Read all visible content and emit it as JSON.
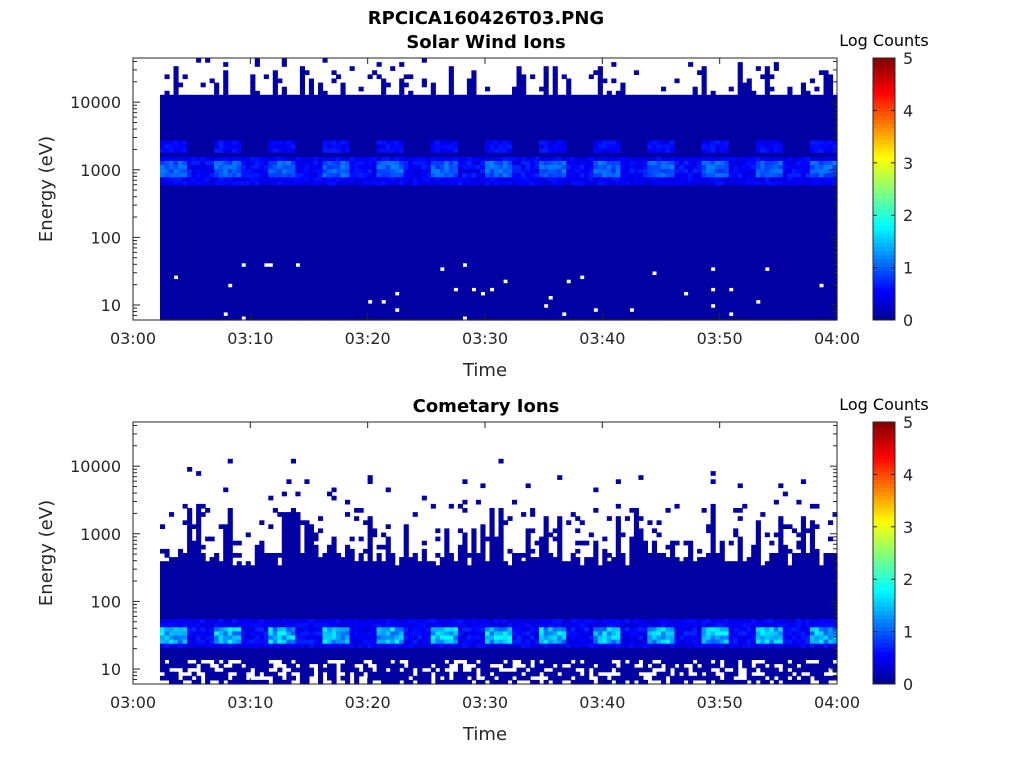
{
  "figure": {
    "title": "RPCICA160426T03.PNG"
  },
  "colors": {
    "background": "#ffffff",
    "empty": "#ffffff",
    "colormap": [
      "#00008f",
      "#0000ff",
      "#00ffff",
      "#ffff00",
      "#ff0000",
      "#800000"
    ]
  },
  "chart_data": [
    {
      "type": "heatmap",
      "title": "Solar Wind Ions",
      "xlabel": "Time",
      "ylabel": "Energy (eV)",
      "xticks": [
        "03:00",
        "03:10",
        "03:20",
        "03:30",
        "03:40",
        "03:50",
        "04:00"
      ],
      "xlim": [
        "03:00",
        "04:00"
      ],
      "yscale": "log",
      "ylim": [
        6,
        45000
      ],
      "yticks": [
        10,
        100,
        1000,
        10000
      ],
      "ytick_labels": [
        "10",
        "100",
        "1000",
        "10000"
      ],
      "data_start": "03:02.3",
      "data_end": "04:00",
      "background_log_counts": 0.1,
      "peak_energy_eV": 1000,
      "secondary_energy_eV": 2200,
      "peak_log_counts_range": [
        0.8,
        1.2
      ],
      "colorbar": {
        "label": "Log Counts",
        "min": 0,
        "max": 5,
        "ticks": [
          "0",
          "1",
          "2",
          "3",
          "4",
          "5"
        ]
      }
    },
    {
      "type": "heatmap",
      "title": "Cometary Ions",
      "xlabel": "Time",
      "ylabel": "Energy (eV)",
      "xticks": [
        "03:00",
        "03:10",
        "03:20",
        "03:30",
        "03:40",
        "03:50",
        "04:00"
      ],
      "xlim": [
        "03:00",
        "04:00"
      ],
      "yscale": "log",
      "ylim": [
        6,
        45000
      ],
      "yticks": [
        10,
        100,
        1000,
        10000
      ],
      "ytick_labels": [
        "10",
        "100",
        "1000",
        "10000"
      ],
      "data_start": "03:02.3",
      "data_end": "04:00",
      "background_log_counts": 0.1,
      "peak_energy_eV": 33,
      "peak_log_counts_range": [
        1.0,
        1.8
      ],
      "colorbar": {
        "label": "Log Counts",
        "min": 0,
        "max": 5,
        "ticks": [
          "0",
          "1",
          "2",
          "3",
          "4",
          "5"
        ]
      }
    }
  ]
}
